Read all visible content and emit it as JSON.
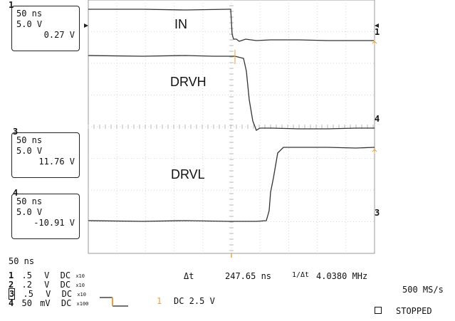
{
  "channels": [
    {
      "id": "1",
      "timebase": "50 ns",
      "scale": "5.0 V",
      "value": "0.27 V",
      "marker": "1"
    },
    {
      "id": "3",
      "timebase": "50 ns",
      "scale": "5.0 V",
      "value": "11.76 V",
      "marker": "3"
    },
    {
      "id": "4",
      "timebase": "50 ns",
      "scale": "5.0 V",
      "value": "-10.91 V",
      "marker": "4"
    }
  ],
  "traces": {
    "in": "IN",
    "drvh": "DRVH",
    "drvl": "DRVL"
  },
  "bottom": {
    "timebase": "50 ns",
    "ch_list": [
      {
        "n": "1",
        "scale": ".5",
        "unit": "V",
        "coupling": "DC",
        "probe": "x10"
      },
      {
        "n": "2",
        "scale": ".2",
        "unit": "V",
        "coupling": "DC",
        "probe": "x10"
      },
      {
        "n": "3",
        "scale": ".5",
        "unit": "V",
        "coupling": "DC",
        "probe": "x10"
      },
      {
        "n": "4",
        "scale": "50",
        "unit": "mV",
        "coupling": "DC",
        "probe": "x100"
      }
    ],
    "delta_t_label": "Δt",
    "delta_t_value": "247.65 ns",
    "inv_dt_label": "1/Δt",
    "inv_dt_value": "4.0380 MHz",
    "sample_rate": "500 MS/s",
    "trigger_source": "1",
    "trigger_level": "DC 2.5 V",
    "run_state": "STOPPED"
  }
}
